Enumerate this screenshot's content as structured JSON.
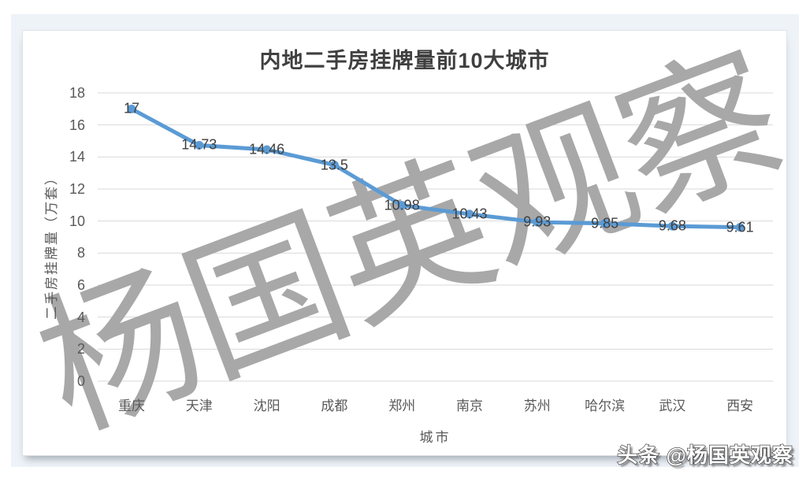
{
  "chart_data": {
    "type": "line",
    "title": "内地二手房挂牌量前10大城市",
    "categories": [
      "重庆",
      "天津",
      "沈阳",
      "成都",
      "郑州",
      "南京",
      "苏州",
      "哈尔滨",
      "武汉",
      "西安"
    ],
    "series": [
      {
        "name": "二手房挂牌量",
        "values": [
          17,
          14.73,
          14.46,
          13.5,
          10.98,
          10.43,
          9.93,
          9.85,
          9.68,
          9.61
        ]
      }
    ],
    "data_labels": [
      "17",
      "14.73",
      "14.46",
      "13.5",
      "10.98",
      "10.43",
      "9.93",
      "9.85",
      "9.68",
      "9.61"
    ],
    "xlabel": "城市",
    "ylabel": "二手房挂牌量（万套）",
    "ylim": [
      0,
      18
    ],
    "yticks": [
      0,
      2,
      4,
      6,
      8,
      10,
      12,
      14,
      16,
      18
    ],
    "grid": true,
    "legend_position": "none",
    "line_color": "#5b9bd5",
    "marker": "circle"
  },
  "watermarks": {
    "diagonal": "杨国英观察",
    "badge": "头条 @杨国英观察"
  },
  "colors": {
    "line": "#5b9bd5",
    "grid": "#d9d9d9",
    "tick_text": "#595959",
    "data_label_text": "#3f3f3f",
    "title_text": "#3f3f3f",
    "watermark": "#a8a8a8",
    "panel_bg": "#eef3f8",
    "card_bg": "#ffffff"
  }
}
